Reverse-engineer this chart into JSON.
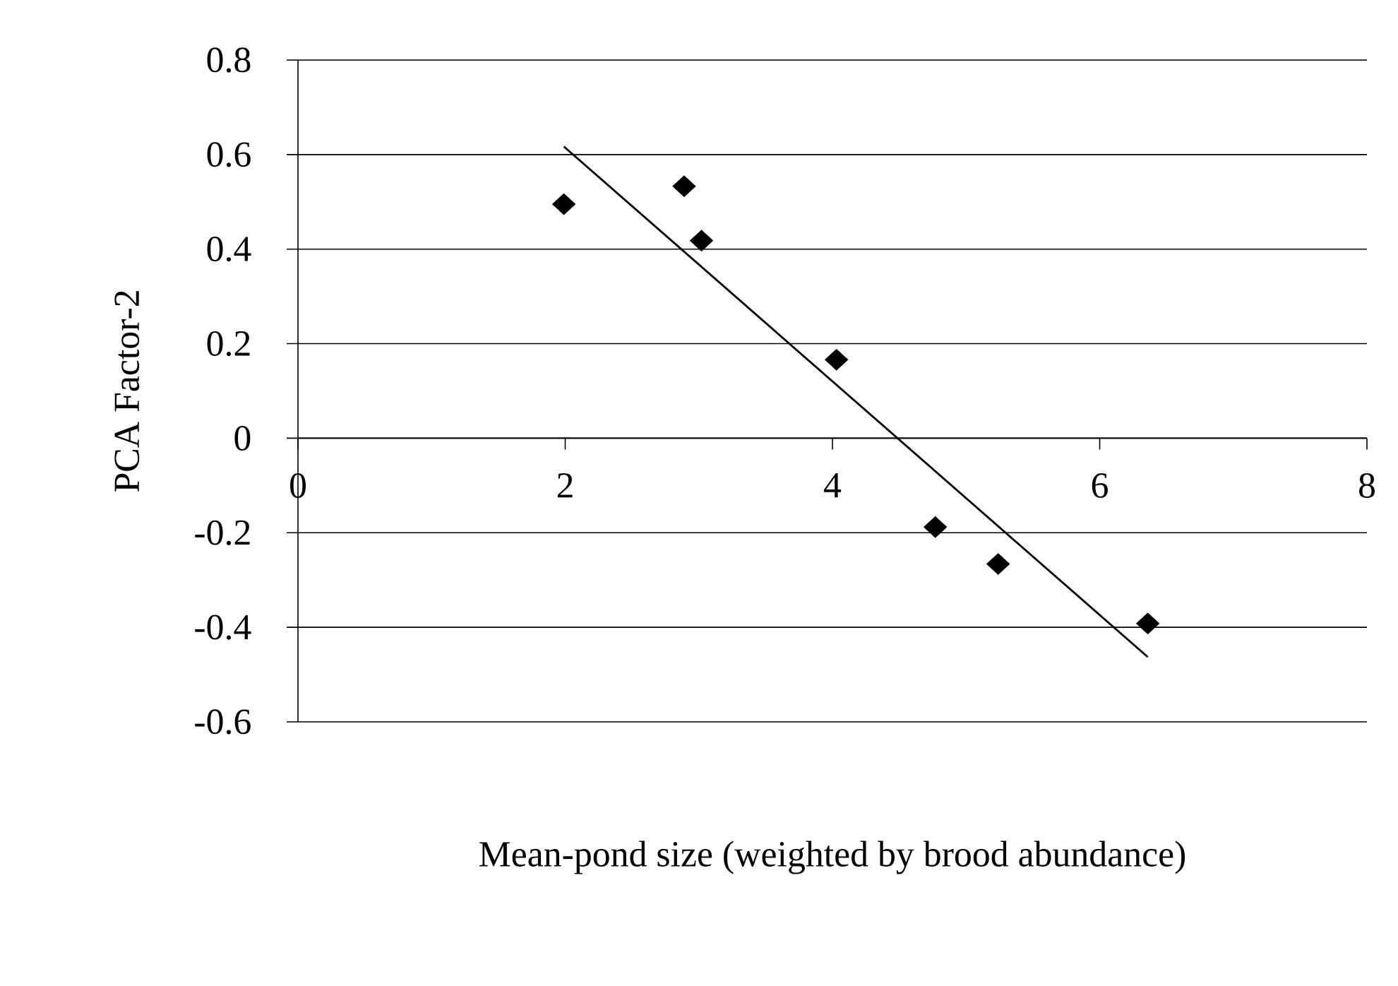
{
  "chart_data": {
    "type": "scatter",
    "xlabel": "Mean-pond size (weighted by brood abundance)",
    "ylabel": "PCA Factor-2",
    "xlim": [
      0,
      8
    ],
    "ylim": [
      -0.6,
      0.8
    ],
    "xticks": [
      0,
      2,
      4,
      6,
      8
    ],
    "yticks": [
      -0.6,
      -0.4,
      -0.2,
      0,
      0.2,
      0.4,
      0.6,
      0.8
    ],
    "grid": "y",
    "marker": "diamond",
    "series": [
      {
        "color": "#000000",
        "x": [
          1.99,
          2.89,
          3.02,
          4.03,
          4.77,
          5.24,
          6.36
        ],
        "values": [
          0.495,
          0.533,
          0.418,
          0.166,
          -0.188,
          -0.266,
          -0.392
        ]
      },
      {
        "type": "line",
        "color": "#000000",
        "line_style": "solid",
        "marker": "none",
        "x": [
          1.99,
          6.36
        ],
        "values": [
          0.617,
          -0.463
        ]
      }
    ]
  }
}
